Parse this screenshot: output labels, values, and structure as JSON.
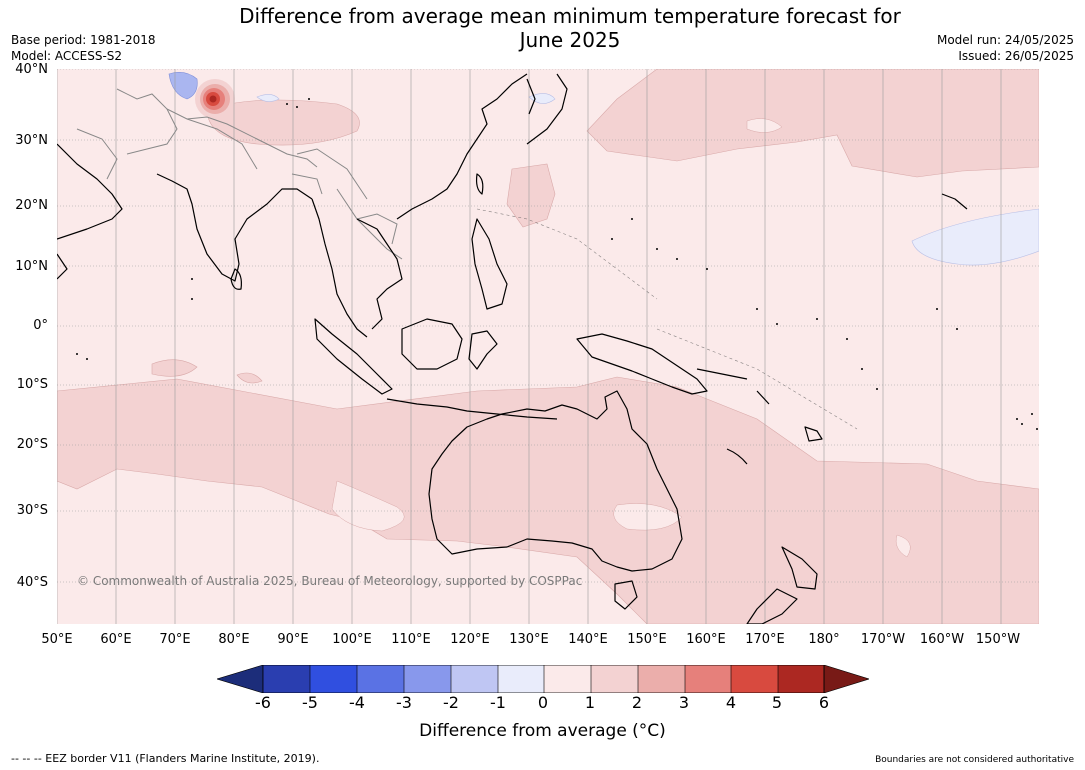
{
  "title_line1": "Difference from average mean minimum temperature forecast for",
  "title_line2": "June 2025",
  "base_period": "Base period: 1981-2018",
  "model": "Model: ACCESS-S2",
  "model_run": "Model run: 24/05/2025",
  "issued": "Issued: 26/05/2025",
  "lat_labels": [
    "40°N",
    "30°N",
    "20°N",
    "10°N",
    "0°",
    "10°S",
    "20°S",
    "30°S",
    "40°S"
  ],
  "lon_labels": [
    "50°E",
    "60°E",
    "70°E",
    "80°E",
    "90°E",
    "100°E",
    "110°E",
    "120°E",
    "130°E",
    "140°E",
    "150°E",
    "160°E",
    "170°E",
    "180°",
    "170°W",
    "160°W",
    "150°W"
  ],
  "copyright": "© Commonwealth of Australia 2025, Bureau of Meteorology, supported by COSPPac",
  "colorbar": {
    "ticks": [
      "-6",
      "-5",
      "-4",
      "-3",
      "-2",
      "-1",
      "0",
      "1",
      "2",
      "3",
      "4",
      "5",
      "6"
    ],
    "colors": [
      "#1c2d7a",
      "#2a3eb0",
      "#304fe0",
      "#5a72e4",
      "#8898ec",
      "#bfc6f3",
      "#e9ecfb",
      "#fbeaea",
      "#f3d2d2",
      "#ebaeab",
      "#e6807b",
      "#d84a3f",
      "#ac2822",
      "#781a16"
    ],
    "label": "Difference from average (°C)"
  },
  "footer_left": "--  --  -- EEZ border V11 (Flanders Marine Institute, 2019).",
  "footer_right": "Boundaries are not considered authoritative",
  "colors": {
    "base": "#fbeaea",
    "warm_band": "#f3d2d2",
    "cool_band": "#e9ecfb",
    "coast": "#000000",
    "border": "#888888"
  }
}
